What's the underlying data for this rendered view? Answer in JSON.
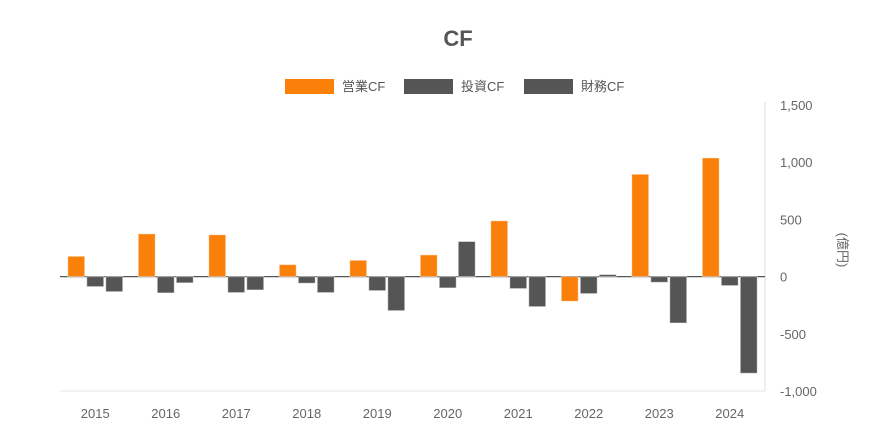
{
  "chart_data": {
    "type": "bar",
    "title": "CF",
    "xlabel": "",
    "ylabel": "(億円)",
    "ylim": [
      -1000,
      1500
    ],
    "yticks": [
      1500,
      1000,
      500,
      0,
      -500,
      -1000
    ],
    "ytick_labels": [
      "1,500",
      "1,000",
      "500",
      "0",
      "-500",
      "-1,000"
    ],
    "categories": [
      "2015",
      "2016",
      "2017",
      "2018",
      "2019",
      "2020",
      "2021",
      "2022",
      "2023",
      "2024"
    ],
    "series": [
      {
        "name": "営業CF",
        "color": "#fa800a",
        "values": [
          178,
          374,
          366,
          105,
          143,
          190,
          488,
          -216,
          895,
          1038
        ]
      },
      {
        "name": "投資CF",
        "color": "#555555",
        "values": [
          -88,
          -143,
          -140,
          -58,
          -123,
          -99,
          -105,
          -149,
          -50,
          -79
        ]
      },
      {
        "name": "財務CF",
        "color": "#555555",
        "values": [
          -132,
          -55,
          -117,
          -140,
          -298,
          307,
          -263,
          18,
          -406,
          -845
        ]
      }
    ],
    "legend_position": "top-center",
    "grid": false
  }
}
